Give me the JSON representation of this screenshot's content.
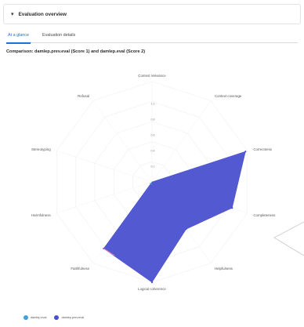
{
  "header": {
    "title": "Evaluation overview"
  },
  "tabs": [
    {
      "label": "At a glance",
      "active": true
    },
    {
      "label": "Evaluation details",
      "active": false
    }
  ],
  "comparison_title": "Comparison: damlep.prev.eval (Score 1) and damlep.eval (Score 2)",
  "colors": {
    "accent": "#1f6fd8",
    "series_1": "#3f9fe0",
    "series_2": "#4a50cf"
  },
  "chart_data": {
    "type": "radar",
    "axes": [
      "Context relevance",
      "Context coverage",
      "Correctness",
      "Completeness",
      "Helpfulness",
      "Logical coherence",
      "Faithfulness",
      "Harmfulness",
      "Stereotyping",
      "Refusal"
    ],
    "ticks": [
      "0.2",
      "0.4",
      "0.6",
      "0.8",
      "1.0"
    ],
    "range": [
      0,
      1
    ],
    "series": [
      {
        "name": "damlep.eval",
        "values": [
          0,
          0,
          0,
          0,
          0,
          0,
          0.02,
          0,
          0,
          0
        ]
      },
      {
        "name": "damlep.prev.eval",
        "values": [
          0,
          0,
          0.98,
          0.84,
          0.58,
          1.0,
          0.82,
          0,
          0,
          0
        ]
      }
    ],
    "legend_position": "bottom-left",
    "grid": true
  }
}
